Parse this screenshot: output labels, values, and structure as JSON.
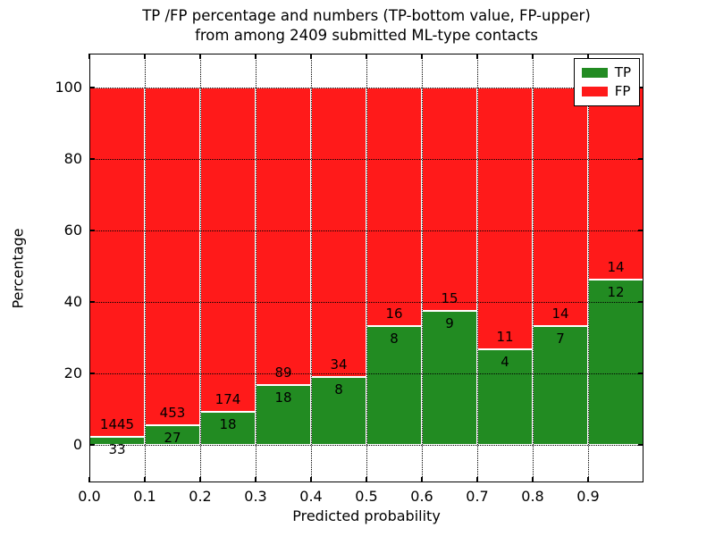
{
  "chart_data": {
    "type": "bar",
    "stacked": true,
    "normalized": "percent_of_bin",
    "title_line1": "TP /FP percentage and numbers (TP-bottom value, FP-upper)",
    "title_line2": "from among 2409 submitted ML-type contacts",
    "total_contacts": 2409,
    "xlabel": "Predicted probability",
    "ylabel": "Percentage",
    "categories": [
      "0.0-0.1",
      "0.1-0.2",
      "0.2-0.3",
      "0.3-0.4",
      "0.4-0.5",
      "0.5-0.6",
      "0.6-0.7",
      "0.7-0.8",
      "0.8-0.9",
      "0.9-1.0"
    ],
    "series": [
      {
        "name": "TP",
        "color": "#228b22",
        "values": [
          33,
          27,
          18,
          18,
          8,
          8,
          9,
          4,
          7,
          12
        ]
      },
      {
        "name": "FP",
        "color": "#ff1a1a",
        "values": [
          1445,
          453,
          174,
          89,
          34,
          16,
          15,
          11,
          14,
          14
        ]
      }
    ],
    "x_tick_labels": [
      "0.0",
      "0.1",
      "0.2",
      "0.3",
      "0.4",
      "0.5",
      "0.6",
      "0.7",
      "0.8",
      "0.9"
    ],
    "y_ticks": [
      0,
      20,
      40,
      60,
      80,
      100
    ],
    "y_tick_labels": [
      "0",
      "20",
      "40",
      "60",
      "80",
      "100"
    ],
    "xlim": [
      0.0,
      1.0
    ],
    "ylim": [
      -10.5,
      109.5
    ],
    "grid": true,
    "bar_edge_color": "#ffffff",
    "count_label_offset_units": 3.5,
    "legend": {
      "position": "upper right",
      "entries": [
        {
          "label": "TP",
          "color": "#228b22"
        },
        {
          "label": "FP",
          "color": "#ff1a1a"
        }
      ]
    }
  }
}
